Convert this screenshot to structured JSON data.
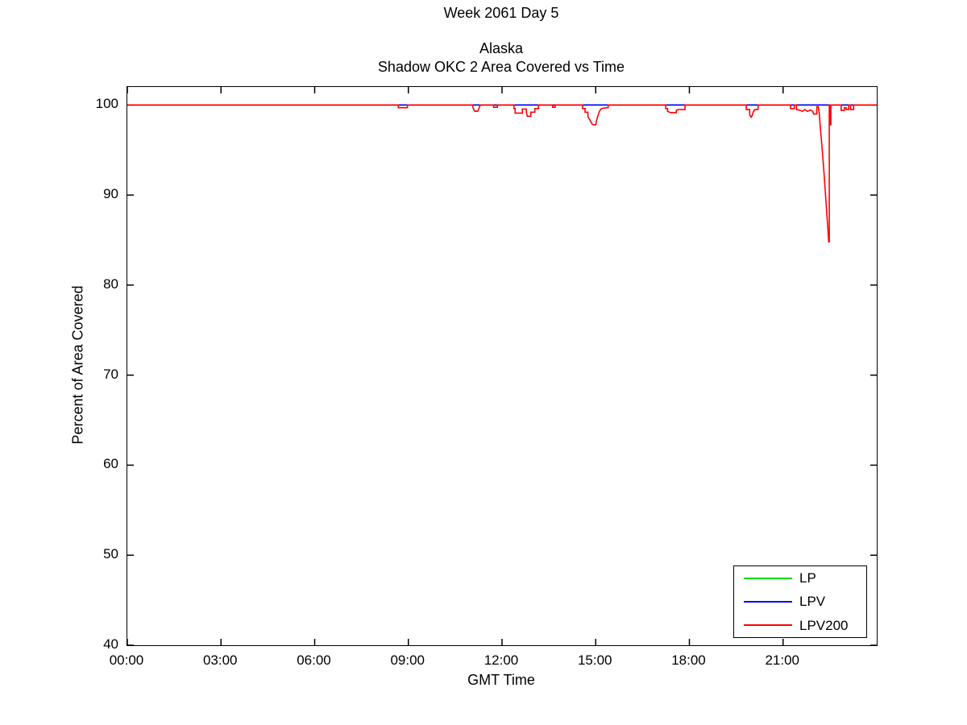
{
  "chart_data": {
    "type": "line",
    "super_title": "Week 2061 Day 5",
    "title": [
      "Alaska",
      "Shadow OKC 2 Area Covered vs Time"
    ],
    "xlabel": "GMT Time",
    "ylabel": "Percent of Area Covered",
    "xlim_hours": [
      0,
      24
    ],
    "ylim": [
      40,
      102
    ],
    "grid": false,
    "legend_position": "bottom-right",
    "x_ticks": [
      {
        "hour": 0,
        "label": "00:00"
      },
      {
        "hour": 3,
        "label": "03:00"
      },
      {
        "hour": 6,
        "label": "06:00"
      },
      {
        "hour": 9,
        "label": "09:00"
      },
      {
        "hour": 12,
        "label": "12:00"
      },
      {
        "hour": 15,
        "label": "15:00"
      },
      {
        "hour": 18,
        "label": "18:00"
      },
      {
        "hour": 21,
        "label": "21:00"
      }
    ],
    "y_ticks": [
      {
        "value": 40,
        "label": "40"
      },
      {
        "value": 50,
        "label": "50"
      },
      {
        "value": 60,
        "label": "60"
      },
      {
        "value": 70,
        "label": "70"
      },
      {
        "value": 80,
        "label": "80"
      },
      {
        "value": 90,
        "label": "90"
      },
      {
        "value": 100,
        "label": "100"
      }
    ],
    "series": [
      {
        "name": "LP",
        "color": "#00dd00",
        "points": [
          [
            0,
            100
          ],
          [
            24,
            100
          ]
        ]
      },
      {
        "name": "LPV",
        "color": "#0000ee",
        "points": [
          [
            0,
            100
          ],
          [
            24,
            100
          ]
        ]
      },
      {
        "name": "LPV200",
        "color": "#ff0000",
        "points": [
          [
            0,
            100
          ],
          [
            8.68,
            100
          ],
          [
            8.68,
            99.7
          ],
          [
            8.97,
            99.7
          ],
          [
            8.97,
            100
          ],
          [
            11.05,
            100
          ],
          [
            11.08,
            99.6
          ],
          [
            11.13,
            99.3
          ],
          [
            11.22,
            99.3
          ],
          [
            11.27,
            99.7
          ],
          [
            11.3,
            100
          ],
          [
            11.73,
            100
          ],
          [
            11.73,
            99.75
          ],
          [
            11.85,
            99.75
          ],
          [
            11.85,
            100
          ],
          [
            12.38,
            100
          ],
          [
            12.38,
            99.6
          ],
          [
            12.42,
            99.6
          ],
          [
            12.42,
            99.1
          ],
          [
            12.65,
            99.1
          ],
          [
            12.65,
            99.55
          ],
          [
            12.78,
            99.55
          ],
          [
            12.78,
            99.2
          ],
          [
            12.81,
            98.75
          ],
          [
            12.92,
            98.75
          ],
          [
            12.92,
            99.2
          ],
          [
            13.05,
            99.2
          ],
          [
            13.05,
            99.6
          ],
          [
            13.17,
            99.6
          ],
          [
            13.17,
            100
          ],
          [
            13.62,
            100
          ],
          [
            13.62,
            99.75
          ],
          [
            13.7,
            99.75
          ],
          [
            13.7,
            100
          ],
          [
            14.58,
            100
          ],
          [
            14.58,
            99.6
          ],
          [
            14.66,
            99.6
          ],
          [
            14.66,
            99.2
          ],
          [
            14.75,
            99.2
          ],
          [
            14.75,
            98.7
          ],
          [
            14.82,
            98.3
          ],
          [
            14.88,
            97.9
          ],
          [
            14.93,
            97.8
          ],
          [
            15.0,
            97.8
          ],
          [
            15.03,
            98.3
          ],
          [
            15.07,
            98.8
          ],
          [
            15.12,
            99.3
          ],
          [
            15.18,
            99.6
          ],
          [
            15.35,
            99.7
          ],
          [
            15.4,
            99.7
          ],
          [
            15.4,
            100
          ],
          [
            17.24,
            100
          ],
          [
            17.24,
            99.6
          ],
          [
            17.3,
            99.6
          ],
          [
            17.3,
            99.3
          ],
          [
            17.4,
            99.15
          ],
          [
            17.58,
            99.15
          ],
          [
            17.58,
            99.4
          ],
          [
            17.65,
            99.5
          ],
          [
            17.86,
            99.5
          ],
          [
            17.86,
            100
          ],
          [
            19.82,
            100
          ],
          [
            19.82,
            99.5
          ],
          [
            19.93,
            99.5
          ],
          [
            19.93,
            98.9
          ],
          [
            19.98,
            98.65
          ],
          [
            20.02,
            98.9
          ],
          [
            20.05,
            99.3
          ],
          [
            20.1,
            99.5
          ],
          [
            20.2,
            99.5
          ],
          [
            20.2,
            100
          ],
          [
            21.24,
            100
          ],
          [
            21.24,
            99.6
          ],
          [
            21.36,
            99.6
          ],
          [
            21.36,
            100
          ],
          [
            21.43,
            100
          ],
          [
            21.43,
            99.5
          ],
          [
            21.55,
            99.4
          ],
          [
            21.62,
            99.3
          ],
          [
            21.7,
            99.5
          ],
          [
            21.78,
            99.3
          ],
          [
            21.88,
            99.45
          ],
          [
            21.95,
            99.3
          ],
          [
            21.98,
            99.0
          ],
          [
            22.08,
            99.0
          ],
          [
            22.08,
            99.8
          ],
          [
            22.13,
            99.8
          ],
          [
            22.16,
            99.0
          ],
          [
            22.2,
            97.2
          ],
          [
            22.25,
            95.2
          ],
          [
            22.3,
            93.0
          ],
          [
            22.35,
            90.5
          ],
          [
            22.4,
            88.0
          ],
          [
            22.44,
            86.0
          ],
          [
            22.46,
            84.8
          ],
          [
            22.48,
            84.8
          ],
          [
            22.48,
            100
          ],
          [
            22.5,
            100
          ],
          [
            22.5,
            97.8
          ],
          [
            22.53,
            97.8
          ],
          [
            22.53,
            100
          ],
          [
            22.86,
            100
          ],
          [
            22.86,
            99.4
          ],
          [
            22.96,
            99.4
          ],
          [
            22.96,
            99.7
          ],
          [
            23.02,
            99.7
          ],
          [
            23.02,
            99.5
          ],
          [
            23.1,
            99.5
          ],
          [
            23.1,
            100
          ],
          [
            23.16,
            100
          ],
          [
            23.16,
            99.5
          ],
          [
            23.26,
            99.5
          ],
          [
            23.26,
            100
          ],
          [
            24,
            100
          ]
        ]
      }
    ]
  }
}
